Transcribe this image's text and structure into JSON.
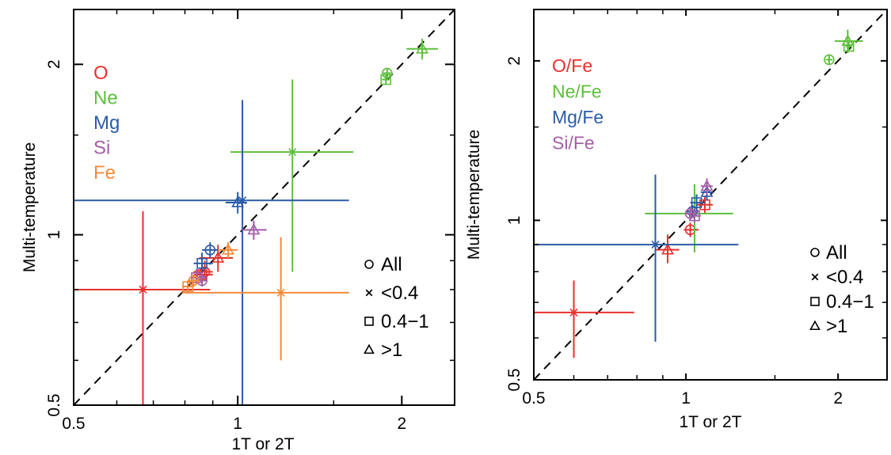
{
  "chart_data": [
    {
      "type": "scatter",
      "title": "",
      "xlabel": "1T or 2T",
      "ylabel": "Multi-temperature",
      "xlim": [
        0.5,
        2.5
      ],
      "ylim": [
        0.5,
        2.5
      ],
      "xticks": [
        0.5,
        1,
        2
      ],
      "yticks": [
        0.5,
        1,
        2
      ],
      "identity_line": true,
      "element_legend": [
        {
          "label": "O",
          "color": "#e8302e"
        },
        {
          "label": "Ne",
          "color": "#5cbf3a"
        },
        {
          "label": "Mg",
          "color": "#2b5ba8"
        },
        {
          "label": "Si",
          "color": "#a45ea8"
        },
        {
          "label": "Fe",
          "color": "#f48a3a"
        }
      ],
      "marker_legend": [
        {
          "marker": "circle",
          "label": "All"
        },
        {
          "marker": "x",
          "label": "<0.4"
        },
        {
          "marker": "square",
          "label": "0.4−1"
        },
        {
          "marker": "triangle",
          "label": ">1"
        }
      ],
      "points": [
        {
          "element": "O",
          "marker": "x",
          "x": 0.67,
          "xlo": 0.5,
          "xhi": 0.89,
          "y": 0.8,
          "ylo": 0.5,
          "yhi": 1.1
        },
        {
          "element": "O",
          "marker": "circle",
          "x": 0.87,
          "xlo": 0.83,
          "xhi": 0.9,
          "y": 0.86,
          "ylo": 0.83,
          "yhi": 0.9
        },
        {
          "element": "O",
          "marker": "square",
          "x": 0.86,
          "xlo": 0.83,
          "xhi": 0.9,
          "y": 0.85,
          "ylo": 0.82,
          "yhi": 0.88
        },
        {
          "element": "O",
          "marker": "triangle",
          "x": 0.92,
          "xlo": 0.85,
          "xhi": 0.98,
          "y": 0.91,
          "ylo": 0.86,
          "yhi": 0.96
        },
        {
          "element": "Ne",
          "marker": "x",
          "x": 1.26,
          "xlo": 0.97,
          "xhi": 1.63,
          "y": 1.4,
          "ylo": 0.86,
          "yhi": 1.88
        },
        {
          "element": "Ne",
          "marker": "circle",
          "x": 1.88,
          "xlo": 1.85,
          "xhi": 1.91,
          "y": 1.93,
          "ylo": 1.89,
          "yhi": 1.97
        },
        {
          "element": "Ne",
          "marker": "square",
          "x": 1.87,
          "xlo": 1.84,
          "xhi": 1.9,
          "y": 1.88,
          "ylo": 1.84,
          "yhi": 1.92
        },
        {
          "element": "Ne",
          "marker": "triangle",
          "x": 2.18,
          "xlo": 2.04,
          "xhi": 2.33,
          "y": 2.13,
          "ylo": 2.04,
          "yhi": 2.22
        },
        {
          "element": "Mg",
          "marker": "x",
          "x": 1.02,
          "xlo": 0.5,
          "xhi": 1.6,
          "y": 1.15,
          "ylo": 0.5,
          "yhi": 1.73
        },
        {
          "element": "Mg",
          "marker": "circle",
          "x": 0.89,
          "xlo": 0.86,
          "xhi": 0.92,
          "y": 0.94,
          "ylo": 0.91,
          "yhi": 0.97
        },
        {
          "element": "Mg",
          "marker": "square",
          "x": 0.86,
          "xlo": 0.83,
          "xhi": 0.9,
          "y": 0.89,
          "ylo": 0.86,
          "yhi": 0.93
        },
        {
          "element": "Mg",
          "marker": "triangle",
          "x": 1.0,
          "xlo": 0.95,
          "xhi": 1.04,
          "y": 1.14,
          "ylo": 1.09,
          "yhi": 1.19
        },
        {
          "element": "Si",
          "marker": "circle",
          "x": 0.86,
          "xlo": 0.84,
          "xhi": 0.88,
          "y": 0.83,
          "ylo": 0.81,
          "yhi": 0.86
        },
        {
          "element": "Si",
          "marker": "square",
          "x": 0.84,
          "xlo": 0.82,
          "xhi": 0.87,
          "y": 0.84,
          "ylo": 0.82,
          "yhi": 0.87
        },
        {
          "element": "Si",
          "marker": "triangle",
          "x": 1.07,
          "xlo": 1.02,
          "xhi": 1.13,
          "y": 1.02,
          "ylo": 0.98,
          "yhi": 1.06
        },
        {
          "element": "Fe",
          "marker": "x",
          "x": 1.2,
          "xlo": 0.79,
          "xhi": 1.6,
          "y": 0.79,
          "ylo": 0.6,
          "yhi": 0.99
        },
        {
          "element": "Fe",
          "marker": "circle",
          "x": 0.83,
          "xlo": 0.81,
          "xhi": 0.85,
          "y": 0.83,
          "ylo": 0.81,
          "yhi": 0.85
        },
        {
          "element": "Fe",
          "marker": "square",
          "x": 0.81,
          "xlo": 0.79,
          "xhi": 0.83,
          "y": 0.81,
          "ylo": 0.79,
          "yhi": 0.83
        },
        {
          "element": "Fe",
          "marker": "triangle",
          "x": 0.96,
          "xlo": 0.92,
          "xhi": 1.0,
          "y": 0.94,
          "ylo": 0.91,
          "yhi": 0.97
        }
      ]
    },
    {
      "type": "scatter",
      "title": "",
      "xlabel": "1T or 2T",
      "ylabel": "Multi-temperature",
      "xlim": [
        0.5,
        2.5
      ],
      "ylim": [
        0.5,
        2.5
      ],
      "xticks": [
        0.5,
        1,
        2
      ],
      "yticks": [
        0.5,
        1,
        2
      ],
      "identity_line": true,
      "element_legend": [
        {
          "label": "O/Fe",
          "color": "#e8302e"
        },
        {
          "label": "Ne/Fe",
          "color": "#5cbf3a"
        },
        {
          "label": "Mg/Fe",
          "color": "#2b5ba8"
        },
        {
          "label": "Si/Fe",
          "color": "#a45ea8"
        }
      ],
      "marker_legend": [
        {
          "marker": "circle",
          "label": "All"
        },
        {
          "marker": "x",
          "label": "<0.4"
        },
        {
          "marker": "square",
          "label": "0.4−1"
        },
        {
          "marker": "triangle",
          "label": ">1"
        }
      ],
      "points": [
        {
          "element": "O/Fe",
          "marker": "x",
          "x": 0.6,
          "xlo": 0.5,
          "xhi": 0.79,
          "y": 0.67,
          "ylo": 0.55,
          "yhi": 0.77
        },
        {
          "element": "O/Fe",
          "marker": "triangle",
          "x": 0.92,
          "xlo": 0.87,
          "xhi": 0.97,
          "y": 0.88,
          "ylo": 0.83,
          "yhi": 0.94
        },
        {
          "element": "O/Fe",
          "marker": "circle",
          "x": 1.02,
          "xlo": 0.99,
          "xhi": 1.06,
          "y": 0.96,
          "ylo": 0.93,
          "yhi": 0.99
        },
        {
          "element": "O/Fe",
          "marker": "square",
          "x": 1.09,
          "xlo": 1.05,
          "xhi": 1.13,
          "y": 1.07,
          "ylo": 1.03,
          "yhi": 1.11
        },
        {
          "element": "Ne/Fe",
          "marker": "x",
          "x": 1.04,
          "xlo": 0.83,
          "xhi": 1.24,
          "y": 1.03,
          "ylo": 0.87,
          "yhi": 1.17
        },
        {
          "element": "Ne/Fe",
          "marker": "circle",
          "x": 1.92,
          "xlo": 1.89,
          "xhi": 1.95,
          "y": 2.01,
          "ylo": 1.97,
          "yhi": 2.05
        },
        {
          "element": "Ne/Fe",
          "marker": "square",
          "x": 2.1,
          "xlo": 2.07,
          "xhi": 2.13,
          "y": 2.13,
          "ylo": 2.09,
          "yhi": 2.17
        },
        {
          "element": "Ne/Fe",
          "marker": "triangle",
          "x": 2.09,
          "xlo": 1.97,
          "xhi": 2.24,
          "y": 2.18,
          "ylo": 2.07,
          "yhi": 2.29
        },
        {
          "element": "Mg/Fe",
          "marker": "x",
          "x": 0.87,
          "xlo": 0.5,
          "xhi": 1.27,
          "y": 0.9,
          "ylo": 0.59,
          "yhi": 1.22
        },
        {
          "element": "Mg/Fe",
          "marker": "circle",
          "x": 1.03,
          "xlo": 1.0,
          "xhi": 1.06,
          "y": 1.04,
          "ylo": 1.01,
          "yhi": 1.07
        },
        {
          "element": "Mg/Fe",
          "marker": "square",
          "x": 1.05,
          "xlo": 1.02,
          "xhi": 1.09,
          "y": 1.08,
          "ylo": 1.04,
          "yhi": 1.12
        },
        {
          "element": "Mg/Fe",
          "marker": "triangle",
          "x": 1.1,
          "xlo": 1.07,
          "xhi": 1.13,
          "y": 1.13,
          "ylo": 1.09,
          "yhi": 1.17
        },
        {
          "element": "Si/Fe",
          "marker": "circle",
          "x": 1.02,
          "xlo": 1.0,
          "xhi": 1.05,
          "y": 1.03,
          "ylo": 1.0,
          "yhi": 1.06
        },
        {
          "element": "Si/Fe",
          "marker": "square",
          "x": 1.04,
          "xlo": 1.02,
          "xhi": 1.07,
          "y": 1.02,
          "ylo": 0.99,
          "yhi": 1.05
        },
        {
          "element": "Si/Fe",
          "marker": "triangle",
          "x": 1.1,
          "xlo": 1.07,
          "xhi": 1.13,
          "y": 1.16,
          "ylo": 1.12,
          "yhi": 1.2
        }
      ]
    }
  ]
}
